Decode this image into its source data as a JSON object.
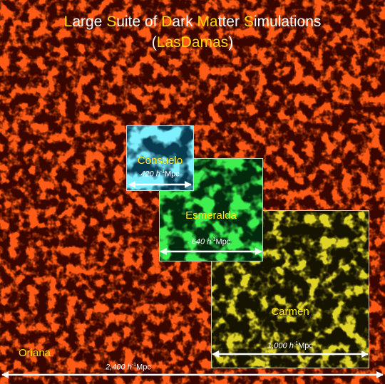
{
  "title": {
    "line1_parts": [
      {
        "text": "L",
        "hl": true
      },
      {
        "text": "arge ",
        "hl": false
      },
      {
        "text": "S",
        "hl": true
      },
      {
        "text": "uite of ",
        "hl": false
      },
      {
        "text": "D",
        "hl": true
      },
      {
        "text": "ark ",
        "hl": false
      },
      {
        "text": "Ma",
        "hl": true
      },
      {
        "text": "tter ",
        "hl": false
      },
      {
        "text": "S",
        "hl": true
      },
      {
        "text": "imulations",
        "hl": false
      }
    ],
    "line2_parts": [
      {
        "text": "(",
        "hl": false
      },
      {
        "text": "LasDamas",
        "hl": true
      },
      {
        "text": ")",
        "hl": false
      }
    ]
  },
  "simulations": [
    {
      "name": "Oriana",
      "size_value": "2,400",
      "unit_h": "h",
      "unit_exp": "-1",
      "unit": "Mpc",
      "color": "#ff4a10"
    },
    {
      "name": "Carmen",
      "size_value": "1,000",
      "unit_h": "h",
      "unit_exp": "-1",
      "unit": "Mpc",
      "color": "#d8d020"
    },
    {
      "name": "Esmeralda",
      "size_value": "640",
      "unit_h": "h",
      "unit_exp": "-1",
      "unit": "Mpc",
      "color": "#30e040"
    },
    {
      "name": "Consuelo",
      "size_value": "420",
      "unit_h": "h",
      "unit_exp": "-1",
      "unit": "Mpc",
      "color": "#40d8f0"
    }
  ],
  "colors": {
    "highlight": "#ffd800",
    "label": "#ffe600",
    "arrow": "#ffffff",
    "background_deep": "#2a0400"
  }
}
